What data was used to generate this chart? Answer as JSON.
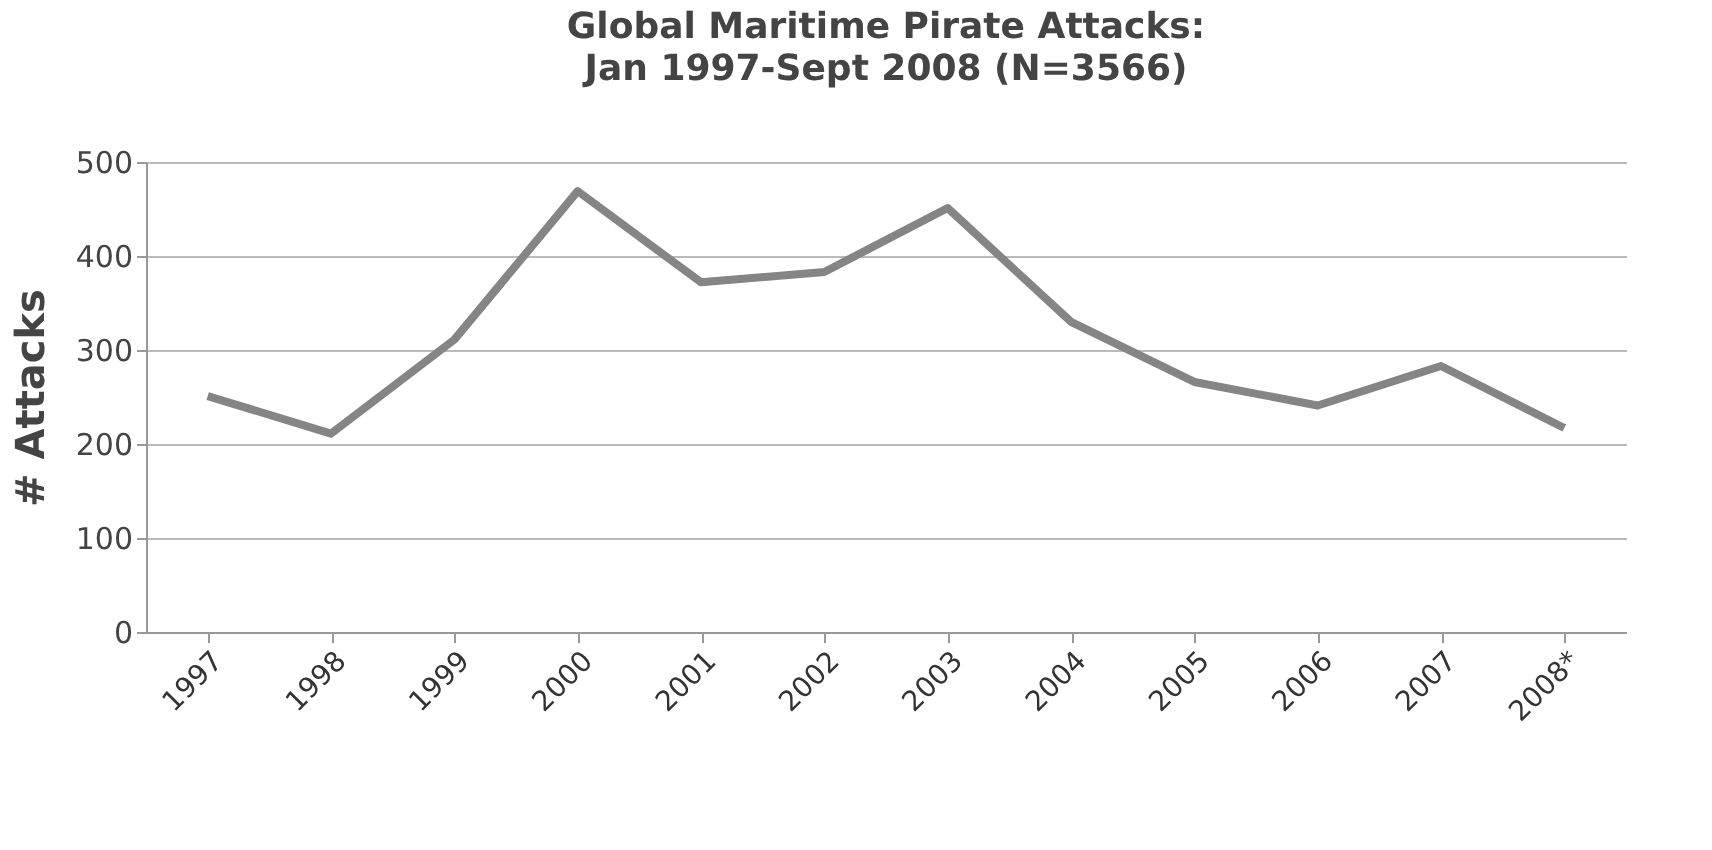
{
  "chart_data": {
    "type": "line",
    "title": "Global Maritime Pirate Attacks:",
    "subtitle": "Jan 1997-Sept 2008 (N=3566)",
    "ylabel": "# Attacks",
    "categories": [
      "1997",
      "1998",
      "1999",
      "2000",
      "2001",
      "2002",
      "2003",
      "2004",
      "2005",
      "2006",
      "2007",
      "2008*"
    ],
    "series": [
      {
        "color": "#858585",
        "values": [
          251,
          211,
          311,
          469,
          372,
          383,
          451,
          330,
          266,
          241,
          283,
          217
        ]
      }
    ],
    "ylim": [
      0,
      500
    ],
    "yticks": [
      0,
      100,
      200,
      300,
      400,
      500
    ],
    "grid": "y",
    "marker": "none",
    "line_style": "solid"
  }
}
